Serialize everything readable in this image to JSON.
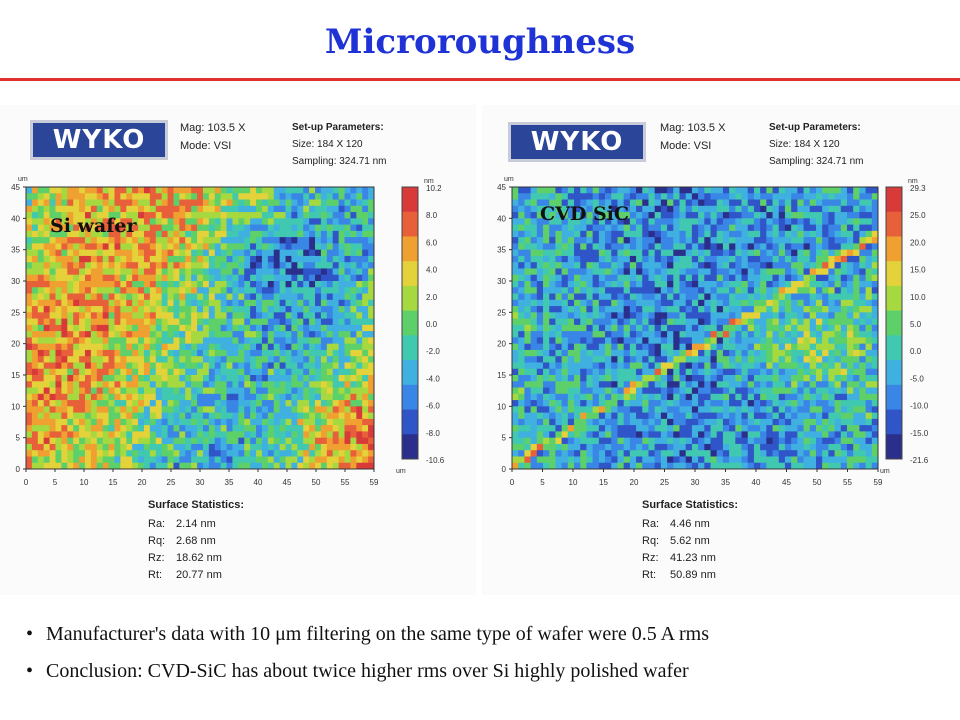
{
  "title": "Microroughness",
  "colors": {
    "title": "#1f32d6",
    "rule": "#e03030"
  },
  "chart_data": [
    {
      "type": "heatmap",
      "label": "Si wafer",
      "logo": "WYKO",
      "mag": "Mag: 103.5 X",
      "mode": "Mode: VSI",
      "setup_title": "Set-up Parameters:",
      "size": "Size: 184 X 120",
      "sampling": "Sampling: 324.71 nm",
      "x_unit": "um",
      "y_unit": "um",
      "z_unit": "nm",
      "xticks": [
        "0",
        "5",
        "10",
        "15",
        "20",
        "25",
        "30",
        "35",
        "40",
        "45",
        "50",
        "55",
        "59"
      ],
      "yticks": [
        "45",
        "40",
        "35",
        "30",
        "25",
        "20",
        "15",
        "10",
        "5",
        "0"
      ],
      "colorbar_ticks": [
        "10.2",
        "8.0",
        "6.0",
        "4.0",
        "2.0",
        "0.0",
        "-2.0",
        "-4.0",
        "-6.0",
        "-8.0",
        "-10.6"
      ],
      "xlim": [
        0,
        59
      ],
      "ylim": [
        0,
        45
      ],
      "zlim": [
        -10.6,
        10.2
      ],
      "stats_title": "Surface Statistics:",
      "stats": [
        {
          "k": "Ra:",
          "v": "2.14 nm"
        },
        {
          "k": "Rq:",
          "v": "2.68 nm"
        },
        {
          "k": "Rz:",
          "v": "18.62 nm"
        },
        {
          "k": "Rt:",
          "v": "20.77 nm"
        }
      ]
    },
    {
      "type": "heatmap",
      "label": "CVD SiC",
      "logo": "WYKO",
      "mag": "Mag: 103.5 X",
      "mode": "Mode: VSI",
      "setup_title": "Set-up Parameters:",
      "size": "Size: 184 X 120",
      "sampling": "Sampling: 324.71 nm",
      "x_unit": "um",
      "y_unit": "um",
      "z_unit": "nm",
      "xticks": [
        "0",
        "5",
        "10",
        "15",
        "20",
        "25",
        "30",
        "35",
        "40",
        "45",
        "50",
        "55",
        "59"
      ],
      "yticks": [
        "45",
        "40",
        "35",
        "30",
        "25",
        "20",
        "15",
        "10",
        "5",
        "0"
      ],
      "colorbar_ticks": [
        "29.3",
        "25.0",
        "20.0",
        "15.0",
        "10.0",
        "5.0",
        "0.0",
        "-5.0",
        "-10.0",
        "-15.0",
        "-21.6"
      ],
      "xlim": [
        0,
        59
      ],
      "ylim": [
        0,
        45
      ],
      "zlim": [
        -21.6,
        29.3
      ],
      "stats_title": "Surface Statistics:",
      "stats": [
        {
          "k": "Ra:",
          "v": "4.46 nm"
        },
        {
          "k": "Rq:",
          "v": "5.62 nm"
        },
        {
          "k": "Rz:",
          "v": "41.23 nm"
        },
        {
          "k": "Rt:",
          "v": "50.89 nm"
        }
      ]
    }
  ],
  "bullets": [
    "Manufacturer's data with 10 μm filtering on the same type of wafer were 0.5 A rms",
    "Conclusion: CVD-SiC has about twice higher rms over Si highly polished wafer"
  ]
}
